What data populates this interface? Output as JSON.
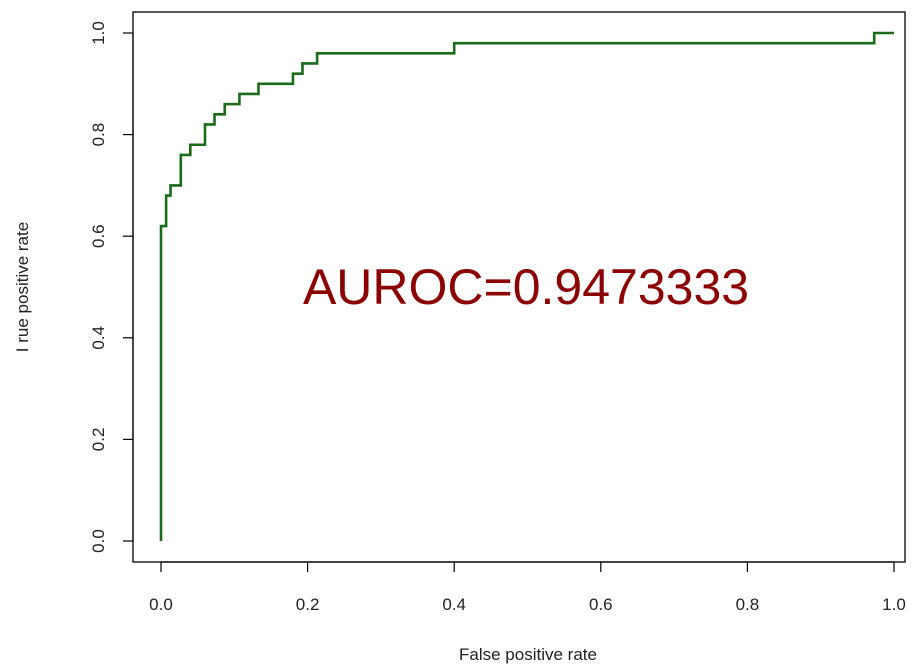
{
  "chart_data": {
    "type": "line",
    "title": "",
    "xlabel": "False positive rate",
    "ylabel": "I rue positive rate",
    "xlim": [
      0,
      1
    ],
    "ylim": [
      0,
      1
    ],
    "x_ticks": [
      0.0,
      0.2,
      0.4,
      0.6,
      0.8,
      1.0
    ],
    "x_tick_labels": [
      "0.0",
      "0.2",
      "0.4",
      "0.6",
      "0.8",
      "1.0"
    ],
    "y_ticks": [
      0.0,
      0.2,
      0.4,
      0.6,
      0.8,
      1.0
    ],
    "y_tick_labels": [
      "0.0",
      "0.2",
      "0.4",
      "0.6",
      "0.8",
      "1.0"
    ],
    "grid": false,
    "annotation": "AUROC=0.9473333",
    "colors": {
      "line": "#1a6b1a",
      "annotation": "#8b0000",
      "axes": "#000000"
    },
    "series": [
      {
        "x": [
          0,
          0,
          0.007,
          0.007,
          0.013,
          0.013,
          0.027,
          0.027,
          0.04,
          0.04,
          0.06,
          0.06,
          0.073,
          0.073,
          0.087,
          0.087,
          0.107,
          0.107,
          0.133,
          0.133,
          0.18,
          0.18,
          0.193,
          0.193,
          0.213,
          0.213,
          0.4,
          0.4,
          0.973,
          0.973,
          1.0
        ],
        "y": [
          0,
          0.62,
          0.62,
          0.68,
          0.68,
          0.7,
          0.7,
          0.76,
          0.76,
          0.78,
          0.78,
          0.82,
          0.82,
          0.84,
          0.84,
          0.86,
          0.86,
          0.88,
          0.88,
          0.9,
          0.9,
          0.92,
          0.92,
          0.94,
          0.94,
          0.96,
          0.96,
          0.98,
          0.98,
          1.0,
          1.0
        ]
      }
    ]
  }
}
